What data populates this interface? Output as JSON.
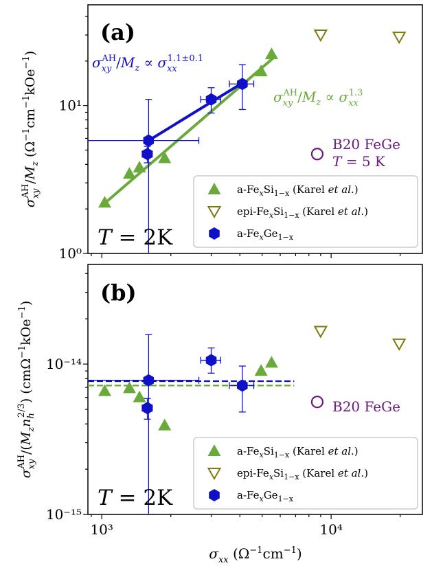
{
  "chart_data": [
    {
      "type": "scatter",
      "panel_label": "(a)",
      "xscale": "log",
      "yscale": "log",
      "xlim": [
        870,
        25000
      ],
      "ylim": [
        1,
        48
      ],
      "grid": false,
      "legend_position": "lower-right",
      "xlabel": "σ_xx (Ω⁻¹cm⁻¹)",
      "ylabel": "σ_xy^AH/M_z (Ω⁻¹cm⁻¹kOe⁻¹)",
      "ytick_labels": [
        {
          "value": 1,
          "label": "10⁰"
        },
        {
          "value": 10,
          "label": "10¹"
        }
      ],
      "xtick_labels": [],
      "annotations": {
        "temperature": "T = 2K",
        "green_fit": "σ_xy^AH/M_z ∝ σ_xx^1.3",
        "blue_fit": "σ_xy^AH/M_z ∝ σ_xx^1.1±0.1",
        "feGe_line1": "B20 FeGe",
        "feGe_line2": "T = 5 K"
      },
      "series": [
        {
          "name": "a-FexSi1−x (Karel et al.)",
          "marker": "filled-triangle",
          "color": "#6aaa3a",
          "points": [
            [
              1030,
              2.2
            ],
            [
              1320,
              3.45
            ],
            [
              1460,
              3.8
            ],
            [
              1880,
              4.4
            ],
            [
              4950,
              17.0
            ],
            [
              5500,
              22.2
            ]
          ]
        },
        {
          "name": "epi-FexSi1−x (Karel et al.)",
          "marker": "open-down-triangle",
          "color": "#7a7a10",
          "points": [
            [
              9000,
              30.0
            ],
            [
              19800,
              29.0
            ]
          ]
        },
        {
          "name": "a-FexGe1−x",
          "marker": "hexagon",
          "color": "#1010c8",
          "points": [
            {
              "x": 1600,
              "y": 5.8,
              "x_lo": 870,
              "x_hi": 2650,
              "y_lo": 1,
              "y_hi": 11.0
            },
            {
              "x": 1580,
              "y": 4.7,
              "x_lo": 1500,
              "x_hi": 1660,
              "y_lo": 4.1,
              "y_hi": 5.3
            },
            {
              "x": 3000,
              "y": 11.0,
              "x_lo": 2700,
              "x_hi": 3300,
              "y_lo": 8.9,
              "y_hi": 13.2
            },
            {
              "x": 4100,
              "y": 14.0,
              "x_lo": 3600,
              "x_hi": 4600,
              "y_lo": 9.4,
              "y_hi": 18.9
            }
          ]
        },
        {
          "name": "B20 FeGe",
          "marker": "open-circle",
          "color": "#6a1a80",
          "points": [
            [
              8700,
              4.7
            ]
          ]
        }
      ],
      "fits": [
        {
          "color": "#6aaa3a",
          "from": [
            1000,
            2.1
          ],
          "to": [
            5700,
            21.5
          ]
        },
        {
          "color": "#1010c8",
          "from": [
            1600,
            5.8
          ],
          "to": [
            4100,
            14.2
          ]
        }
      ],
      "legend_entries": [
        {
          "marker": "filled-triangle",
          "color": "#6aaa3a",
          "prefix": "a-Fe",
          "sub1": "x",
          "mid": "Si",
          "sub2": "1−x",
          "suffix": " (Karel ",
          "italic": "et al.",
          "end": ")"
        },
        {
          "marker": "open-down-triangle",
          "color": "#7a7a10",
          "prefix": "epi-Fe",
          "sub1": "x",
          "mid": "Si",
          "sub2": "1−x",
          "suffix": " (Karel ",
          "italic": "et al.",
          "end": ")"
        },
        {
          "marker": "hexagon",
          "color": "#1010c8",
          "prefix": "a-Fe",
          "sub1": "x",
          "mid": "Ge",
          "sub2": "1−x",
          "suffix": "",
          "italic": "",
          "end": ""
        }
      ]
    },
    {
      "type": "scatter",
      "panel_label": "(b)",
      "xscale": "log",
      "yscale": "log",
      "xlim": [
        870,
        25000
      ],
      "ylim": [
        1e-15,
        4.6e-14
      ],
      "grid": false,
      "legend_position": "lower-right",
      "xlabel": "σ_xx (Ω⁻¹cm⁻¹)",
      "ylabel": "σ_xy^AH/(M_z n_h^2/3) (cmΩ⁻¹kOe⁻¹)",
      "ytick_labels": [
        {
          "value": 1e-15,
          "label": "10⁻¹⁵"
        },
        {
          "value": 1e-14,
          "label": "10⁻¹⁴"
        }
      ],
      "xtick_labels": [
        {
          "value": 1000,
          "label": "10³"
        },
        {
          "value": 10000,
          "label": "10⁴"
        }
      ],
      "annotations": {
        "temperature": "T = 2K",
        "feGe_label": "B20 FeGe"
      },
      "series": [
        {
          "name": "a-FexSi1−x (Karel et al.)",
          "marker": "filled-triangle",
          "color": "#6aaa3a",
          "points": [
            [
              1030,
              6.6e-15
            ],
            [
              1320,
              6.9e-15
            ],
            [
              1460,
              6e-15
            ],
            [
              1880,
              3.9e-15
            ],
            [
              4950,
              9e-15
            ],
            [
              5500,
              1.02e-14
            ]
          ]
        },
        {
          "name": "epi-FexSi1−x (Karel et al.)",
          "marker": "open-down-triangle",
          "color": "#7a7a10",
          "points": [
            [
              9000,
              1.65e-14
            ],
            [
              19800,
              1.36e-14
            ]
          ]
        },
        {
          "name": "a-FexGe1−x",
          "marker": "hexagon",
          "color": "#1010c8",
          "points": [
            {
              "x": 1600,
              "y": 7.8e-15,
              "x_lo": 870,
              "x_hi": 2650,
              "y_lo": 1e-15,
              "y_hi": 1.57e-14
            },
            {
              "x": 1580,
              "y": 5.1e-15,
              "x_lo": 1500,
              "x_hi": 1660,
              "y_lo": 4.3e-15,
              "y_hi": 5.9e-15
            },
            {
              "x": 3000,
              "y": 1.06e-14,
              "x_lo": 2700,
              "x_hi": 3300,
              "y_lo": 8.7e-15,
              "y_hi": 1.28e-14
            },
            {
              "x": 4100,
              "y": 7.2e-15,
              "x_lo": 3600,
              "x_hi": 4600,
              "y_lo": 4.8e-15,
              "y_hi": 9.7e-15
            }
          ]
        },
        {
          "name": "B20 FeGe",
          "marker": "open-circle",
          "color": "#6a1a80",
          "points": [
            [
              8700,
              5.6e-15
            ]
          ]
        }
      ],
      "reference_lines": [
        {
          "style": "dashed",
          "color": "#1010c8",
          "y": 7.7e-15,
          "x_from": 870,
          "x_to": 6900
        },
        {
          "style": "dashed",
          "color": "#6aaa3a",
          "y": 7.2e-15,
          "x_from": 870,
          "x_to": 6900
        }
      ],
      "legend_entries": [
        {
          "marker": "filled-triangle",
          "color": "#6aaa3a",
          "prefix": "a-Fe",
          "sub1": "x",
          "mid": "Si",
          "sub2": "1−x",
          "suffix": " (Karel ",
          "italic": "et al.",
          "end": ")"
        },
        {
          "marker": "open-down-triangle",
          "color": "#7a7a10",
          "prefix": "epi-Fe",
          "sub1": "x",
          "mid": "Si",
          "sub2": "1−x",
          "suffix": " (Karel ",
          "italic": "et al.",
          "end": ")"
        },
        {
          "marker": "hexagon",
          "color": "#1010c8",
          "prefix": "a-Fe",
          "sub1": "x",
          "mid": "Ge",
          "sub2": "1−x",
          "suffix": "",
          "italic": "",
          "end": ""
        }
      ]
    }
  ]
}
